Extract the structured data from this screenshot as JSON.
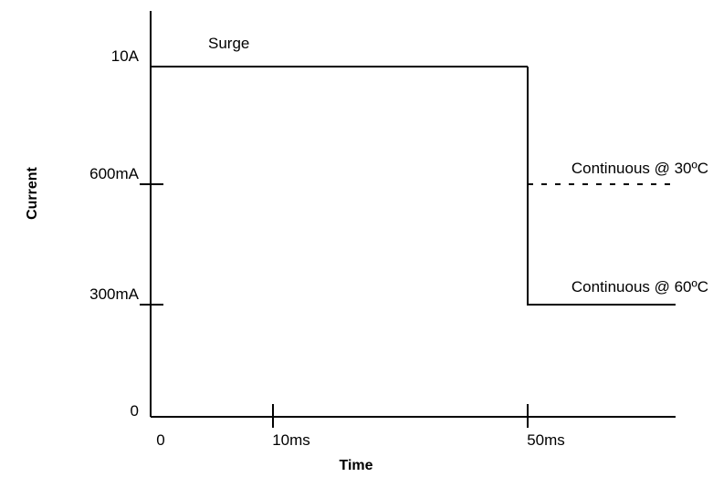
{
  "chart_data": {
    "type": "line",
    "title": "",
    "xlabel": "Time",
    "ylabel": "Current",
    "x_ticks": [
      {
        "value": 0,
        "label": "0"
      },
      {
        "value": 10,
        "label": "10ms"
      },
      {
        "value": 50,
        "label": "50ms"
      }
    ],
    "y_ticks": [
      {
        "value": 0,
        "label": "0"
      },
      {
        "value": 300,
        "label": "300mA"
      },
      {
        "value": 600,
        "label": "600mA"
      },
      {
        "value": 10000,
        "label": "10A"
      }
    ],
    "y_scale": "non-linear (labelled levels)",
    "series": [
      {
        "name": "Surge",
        "style": "solid",
        "points": [
          [
            0,
            10000
          ],
          [
            50,
            10000
          ]
        ]
      },
      {
        "name": "Continuous @ 30ºC",
        "style": "dotted",
        "points": [
          [
            50,
            600
          ],
          [
            64,
            600
          ]
        ]
      },
      {
        "name": "Continuous @ 60ºC",
        "style": "solid",
        "points": [
          [
            50,
            10000
          ],
          [
            50,
            300
          ],
          [
            64,
            300
          ]
        ]
      }
    ],
    "annotations": [
      {
        "text": "Surge"
      },
      {
        "text": "Continuous @ 30ºC"
      },
      {
        "text": "Continuous @ 60ºC"
      }
    ],
    "grid": false,
    "legend": "none",
    "line_color": "#000000"
  }
}
